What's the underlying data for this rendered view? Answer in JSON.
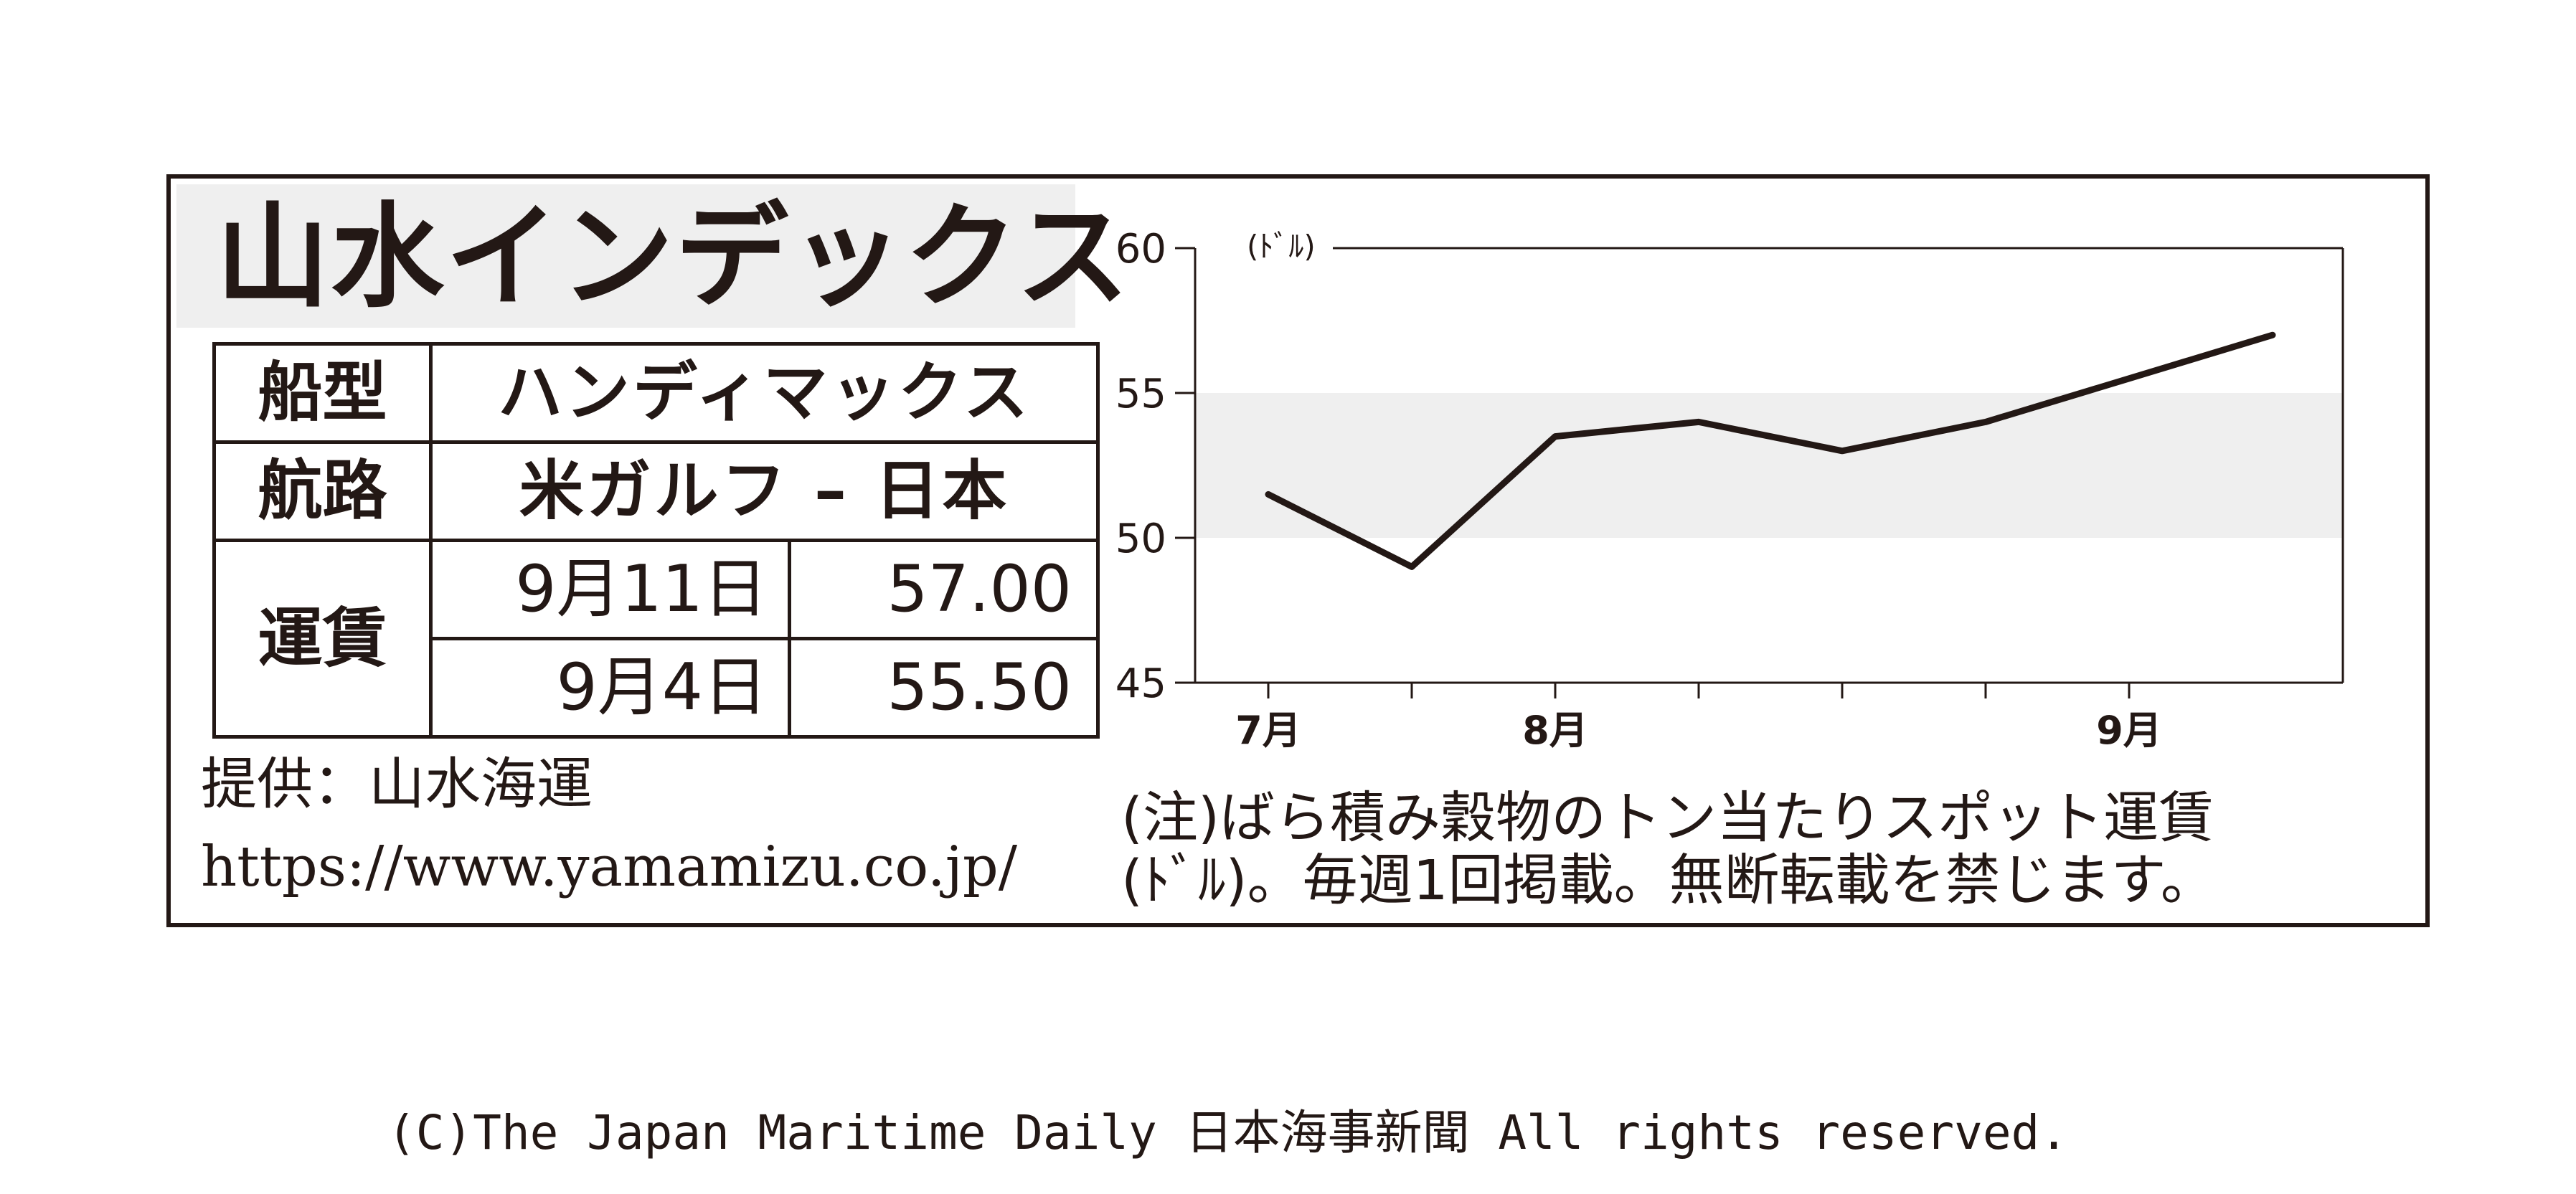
{
  "header": {
    "title": "山水インデックス"
  },
  "table": {
    "ship_type_label": "船型",
    "ship_type_value": "ハンディマックス",
    "route_label": "航路",
    "route_value": "米ガルフ – 日本",
    "rate_label": "運賃",
    "rows": [
      {
        "date": "9月11日",
        "rate": "57.00"
      },
      {
        "date": "9月4日",
        "rate": "55.50"
      }
    ]
  },
  "source": {
    "line1": "提供：山水海運",
    "line2": "https://www.yamamizu.co.jp/"
  },
  "note": {
    "line1": "(注)ばら積み穀物のトン当たりスポット運賃",
    "line2": "(ﾄﾞﾙ)。毎週1回掲載。無断転載を禁じます。"
  },
  "footer": {
    "copyright": "(C)The Japan Maritime Daily 日本海事新聞 All rights reserved."
  },
  "colors": {
    "ink": "#231815",
    "band": "#efefef"
  },
  "chart_data": {
    "type": "line",
    "unit_label": "(ﾄﾞﾙ)",
    "ylim": [
      45,
      60
    ],
    "yticks": [
      "45",
      "50",
      "55",
      "60"
    ],
    "shaded_band": [
      50,
      55
    ],
    "month_labels": [
      {
        "index": 0,
        "label": "7月"
      },
      {
        "index": 2,
        "label": "8月"
      },
      {
        "index": 6,
        "label": "9月"
      }
    ],
    "x_count": 7,
    "values": [
      51.5,
      49.0,
      53.5,
      54.0,
      53.0,
      54.0,
      55.5,
      57.0
    ]
  }
}
